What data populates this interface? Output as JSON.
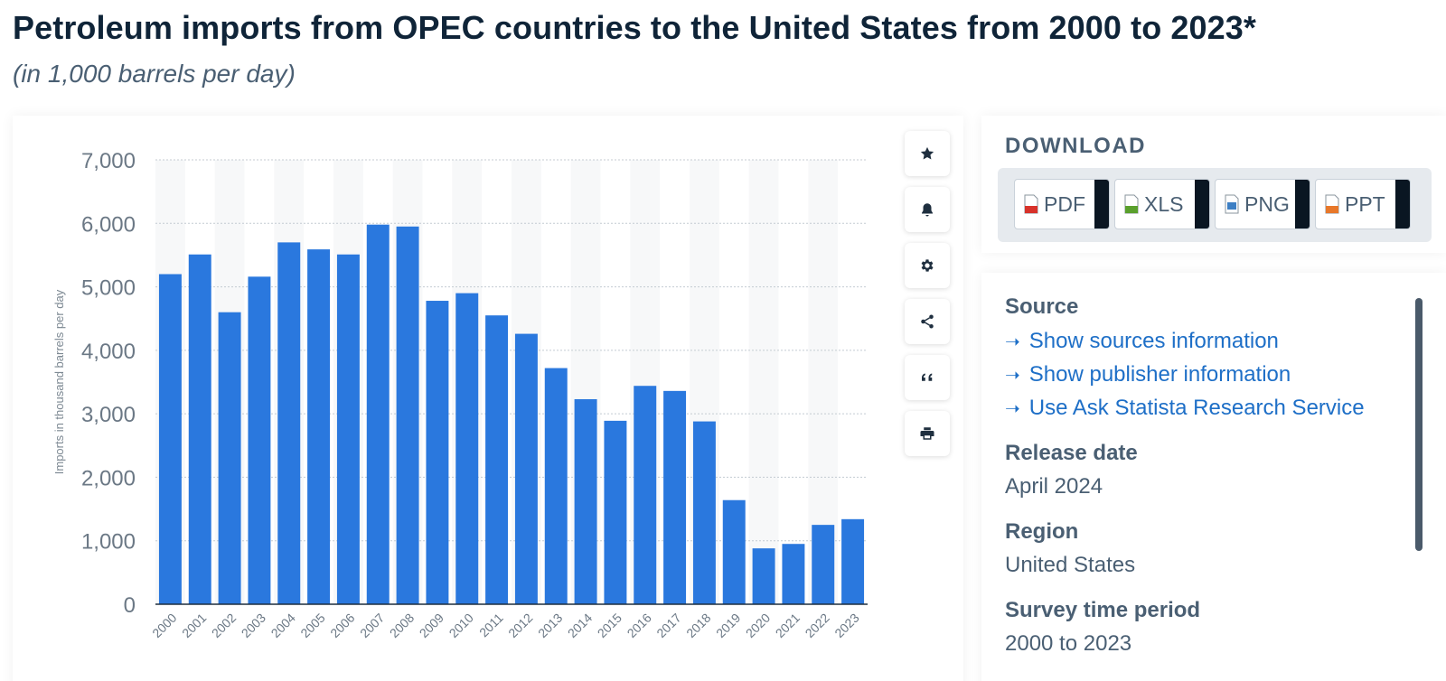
{
  "title": "Petroleum imports from OPEC countries to the United States from 2000 to 2023*",
  "subtitle": "(in 1,000 barrels per day)",
  "colors": {
    "bar": "#2a78de",
    "title": "#0f2438",
    "muted": "#4a5f73",
    "link": "#1e6fc7"
  },
  "tools": [
    {
      "name": "favorite-button",
      "icon": "star-icon"
    },
    {
      "name": "notification-button",
      "icon": "bell-icon"
    },
    {
      "name": "settings-button",
      "icon": "gear-icon"
    },
    {
      "name": "share-button",
      "icon": "share-icon"
    },
    {
      "name": "cite-button",
      "icon": "quote-icon"
    },
    {
      "name": "print-button",
      "icon": "printer-icon"
    }
  ],
  "download": {
    "title": "DOWNLOAD",
    "buttons": [
      {
        "label": "PDF",
        "icon": "pdf-file-icon",
        "color": "#d8322a"
      },
      {
        "label": "XLS",
        "icon": "xls-file-icon",
        "color": "#5aa02c"
      },
      {
        "label": "PNG",
        "icon": "png-file-icon",
        "color": "#3d7fc4"
      },
      {
        "label": "PPT",
        "icon": "ppt-file-icon",
        "color": "#e8782a"
      }
    ]
  },
  "info": {
    "source_heading": "Source",
    "links": [
      "Show sources information",
      "Show publisher information",
      "Use Ask Statista Research Service"
    ],
    "release_heading": "Release date",
    "release_value": "April 2024",
    "region_heading": "Region",
    "region_value": "United States",
    "survey_heading": "Survey time period",
    "survey_value": "2000 to 2023"
  },
  "chart_data": {
    "type": "bar",
    "categories": [
      "2000",
      "2001",
      "2002",
      "2003",
      "2004",
      "2005",
      "2006",
      "2007",
      "2008",
      "2009",
      "2010",
      "2011",
      "2012",
      "2013",
      "2014",
      "2015",
      "2016",
      "2017",
      "2018",
      "2019",
      "2020",
      "2021",
      "2022",
      "2023"
    ],
    "values": [
      5200,
      5510,
      4600,
      5160,
      5700,
      5590,
      5510,
      5980,
      5950,
      4780,
      4900,
      4550,
      4260,
      3720,
      3230,
      2890,
      3440,
      3360,
      2880,
      1640,
      880,
      950,
      1250,
      1340
    ],
    "ylabel": "Imports in thousand barrels per day",
    "yticks": [
      "0",
      "1,000",
      "2,000",
      "3,000",
      "4,000",
      "5,000",
      "6,000",
      "7,000"
    ],
    "ylim": [
      0,
      7000
    ],
    "grid": true,
    "legend": "none"
  }
}
